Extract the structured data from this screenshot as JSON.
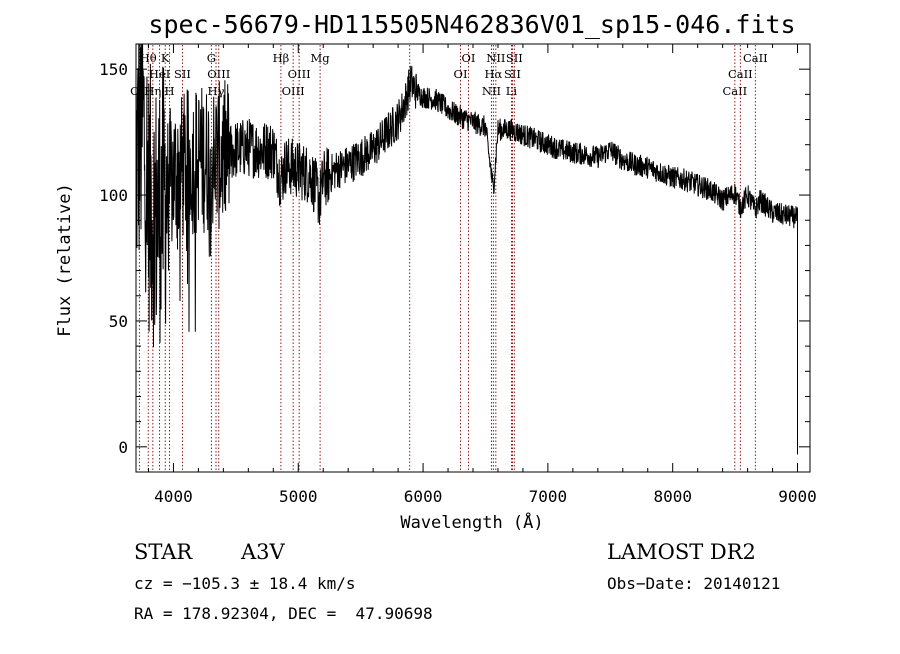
{
  "chart_data": {
    "type": "line",
    "title": "spec-56679-HD115505N462836V01_sp15-046.fits",
    "xlabel": "Wavelength (Å)",
    "ylabel": "Flux (relative)",
    "xlim": [
      3700,
      9100
    ],
    "ylim": [
      -10,
      160
    ],
    "x_ticks": [
      4000,
      5000,
      6000,
      7000,
      8000,
      9000
    ],
    "y_ticks": [
      0,
      50,
      100,
      150
    ],
    "grid": false,
    "spectrum_anchors": [
      [
        3700,
        112
      ],
      [
        3720,
        120
      ],
      [
        3760,
        128
      ],
      [
        3800,
        100
      ],
      [
        3850,
        92
      ],
      [
        3900,
        96
      ],
      [
        3950,
        102
      ],
      [
        4000,
        108
      ],
      [
        4100,
        112
      ],
      [
        4200,
        115
      ],
      [
        4300,
        114
      ],
      [
        4400,
        116
      ],
      [
        4500,
        118
      ],
      [
        4600,
        119
      ],
      [
        4700,
        118
      ],
      [
        4800,
        118
      ],
      [
        4861,
        106
      ],
      [
        4900,
        112
      ],
      [
        5000,
        110
      ],
      [
        5100,
        108
      ],
      [
        5172,
        98
      ],
      [
        5200,
        106
      ],
      [
        5300,
        110
      ],
      [
        5400,
        112
      ],
      [
        5500,
        115
      ],
      [
        5600,
        118
      ],
      [
        5700,
        124
      ],
      [
        5800,
        130
      ],
      [
        5850,
        136
      ],
      [
        5900,
        145
      ],
      [
        5950,
        141
      ],
      [
        6000,
        139
      ],
      [
        6100,
        138
      ],
      [
        6200,
        134
      ],
      [
        6300,
        131
      ],
      [
        6400,
        129
      ],
      [
        6500,
        127
      ],
      [
        6563,
        102
      ],
      [
        6600,
        126
      ],
      [
        6700,
        126
      ],
      [
        6800,
        124
      ],
      [
        6900,
        122
      ],
      [
        7000,
        120
      ],
      [
        7100,
        118
      ],
      [
        7200,
        117
      ],
      [
        7300,
        116
      ],
      [
        7400,
        115
      ],
      [
        7500,
        118
      ],
      [
        7600,
        114
      ],
      [
        7700,
        112
      ],
      [
        7800,
        111
      ],
      [
        7900,
        109
      ],
      [
        8000,
        107
      ],
      [
        8100,
        106
      ],
      [
        8200,
        104
      ],
      [
        8300,
        102
      ],
      [
        8400,
        98
      ],
      [
        8500,
        101
      ],
      [
        8542,
        95
      ],
      [
        8600,
        100
      ],
      [
        8662,
        94
      ],
      [
        8700,
        98
      ],
      [
        8800,
        93
      ],
      [
        8900,
        92
      ],
      [
        9000,
        91
      ]
    ],
    "spectral_lines": [
      {
        "wave": 3727,
        "label": "OII",
        "row": 3
      },
      {
        "wave": 3798,
        "label": "Hθ",
        "row": 1
      },
      {
        "wave": 3835,
        "label": "Hη",
        "row": 3
      },
      {
        "wave": 3889,
        "label": "HeI",
        "row": 2
      },
      {
        "wave": 3934,
        "label": "K",
        "row": 1
      },
      {
        "wave": 3969,
        "label": "H",
        "row": 3
      },
      {
        "wave": 4072,
        "label": "SII",
        "row": 2
      },
      {
        "wave": 4304,
        "label": "G",
        "row": 1
      },
      {
        "wave": 4341,
        "label": "Hγ",
        "row": 3
      },
      {
        "wave": 4363,
        "label": "OIII",
        "row": 2
      },
      {
        "wave": 4861,
        "label": "Hβ",
        "row": 1
      },
      {
        "wave": 4959,
        "label": "OIII",
        "row": 3
      },
      {
        "wave": 5007,
        "label": "OIII",
        "row": 2
      },
      {
        "wave": 5175,
        "label": "Mg",
        "row": 1
      },
      {
        "wave": 5893,
        "label": "",
        "row": 0
      },
      {
        "wave": 6300,
        "label": "OI",
        "row": 2
      },
      {
        "wave": 6364,
        "label": "OI",
        "row": 1
      },
      {
        "wave": 6548,
        "label": "NII",
        "row": 3
      },
      {
        "wave": 6563,
        "label": "Hα",
        "row": 2
      },
      {
        "wave": 6583,
        "label": "NII",
        "row": 1
      },
      {
        "wave": 6708,
        "label": "Li",
        "row": 3
      },
      {
        "wave": 6716,
        "label": "SII",
        "row": 2
      },
      {
        "wave": 6731,
        "label": "SII",
        "row": 1
      },
      {
        "wave": 8498,
        "label": "CaII",
        "row": 3
      },
      {
        "wave": 8542,
        "label": "CaII",
        "row": 2
      },
      {
        "wave": 8662,
        "label": "CaII",
        "row": 1
      }
    ]
  },
  "info": {
    "object_class": "STAR",
    "subclass": "A3V",
    "survey": "LAMOST DR2",
    "velocity": "cz = −105.3 ± 18.4 km/s",
    "obs_date": "Obs−Date: 20140121",
    "coords": "RA = 178.92304, DEC =  47.90698"
  },
  "colors": {
    "spectrum": "#000000",
    "line_markers": "#8b0000"
  }
}
